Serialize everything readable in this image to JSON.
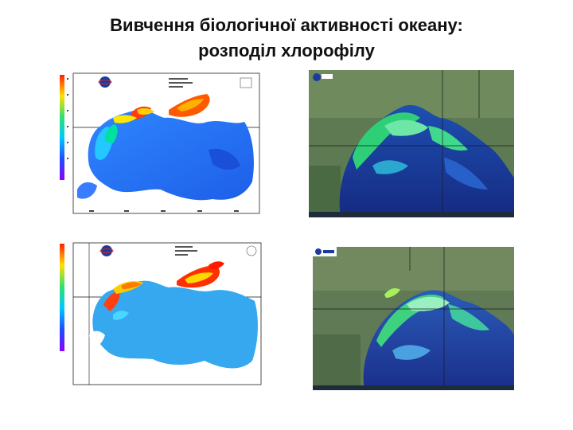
{
  "slide": {
    "title_line1": "Вивчення біологічної активності океану:",
    "title_line2": "розподіл хлорофілу"
  },
  "colors": {
    "land_satellite": "#4e6b45",
    "sea_deep": "#1c2c8a",
    "bloom": "#39d27a",
    "scale_low": "#8a00ff",
    "scale_high": "#ff2000"
  },
  "panels": [
    {
      "kind": "chlorophyll-map",
      "icon": "agency-logo-icon"
    },
    {
      "kind": "satellite-image",
      "icon": "esa-logo-icon"
    },
    {
      "kind": "chlorophyll-map",
      "icon": "agency-logo-icon"
    },
    {
      "kind": "satellite-image",
      "icon": "esa-logo-icon"
    }
  ]
}
